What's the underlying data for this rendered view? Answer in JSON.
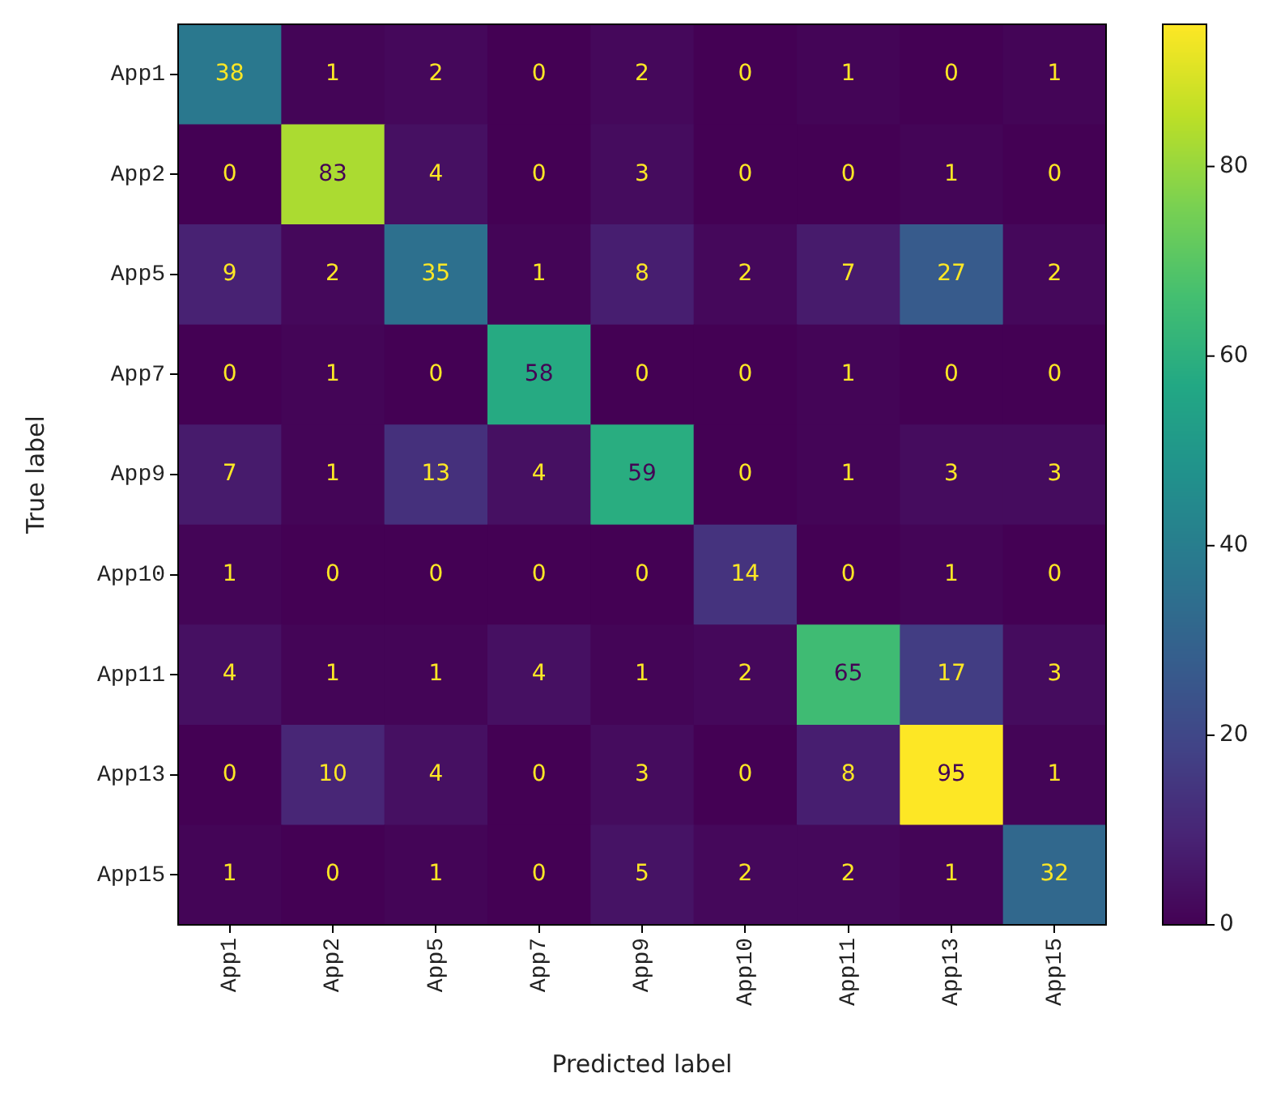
{
  "chart_data": {
    "type": "heatmap",
    "xlabel": "Predicted label",
    "ylabel": "True label",
    "data_labels": true,
    "categories": [
      "App1",
      "App2",
      "App5",
      "App7",
      "App9",
      "App10",
      "App11",
      "App13",
      "App15"
    ],
    "y_categories": [
      "App1",
      "App2",
      "App5",
      "App7",
      "App9",
      "App10",
      "App11",
      "App13",
      "App15"
    ],
    "cells": [
      [
        38,
        1,
        2,
        0,
        2,
        0,
        1,
        0,
        1
      ],
      [
        0,
        83,
        4,
        0,
        3,
        0,
        0,
        1,
        0
      ],
      [
        9,
        2,
        35,
        1,
        8,
        2,
        7,
        27,
        2
      ],
      [
        0,
        1,
        0,
        58,
        0,
        0,
        1,
        0,
        0
      ],
      [
        7,
        1,
        13,
        4,
        59,
        0,
        1,
        3,
        3
      ],
      [
        1,
        0,
        0,
        0,
        0,
        14,
        0,
        1,
        0
      ],
      [
        4,
        1,
        1,
        4,
        1,
        2,
        65,
        17,
        3
      ],
      [
        0,
        10,
        4,
        0,
        3,
        0,
        8,
        95,
        1
      ],
      [
        1,
        0,
        1,
        0,
        5,
        2,
        2,
        1,
        32
      ]
    ],
    "clim": [
      0,
      95
    ],
    "cticks": [
      0,
      20,
      40,
      60,
      80
    ]
  }
}
